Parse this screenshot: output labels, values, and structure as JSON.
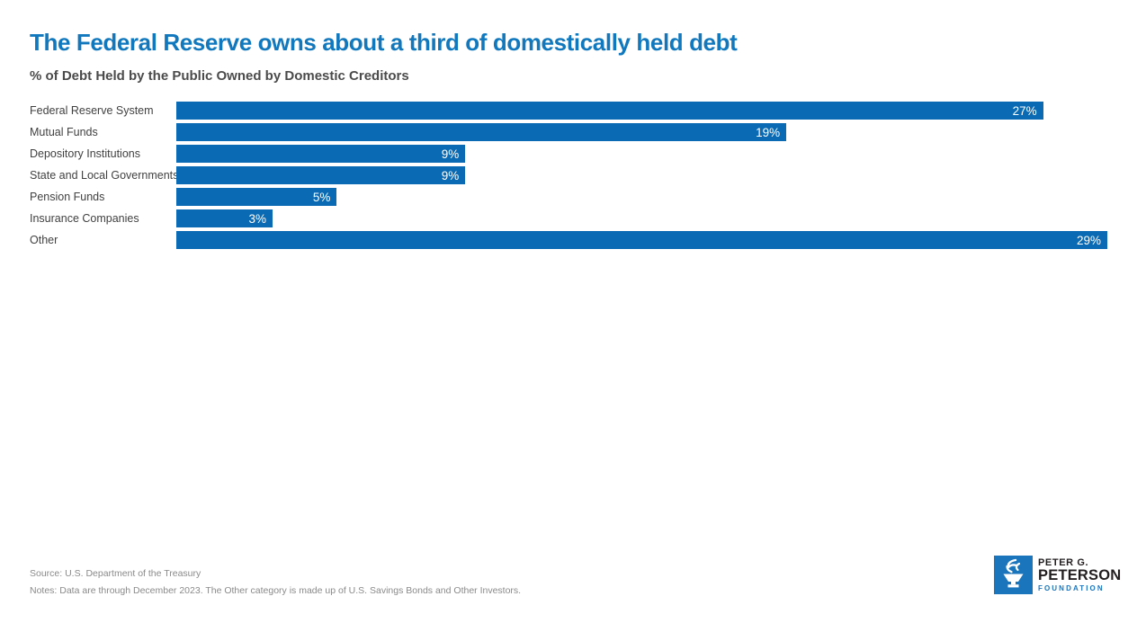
{
  "chart_data": {
    "type": "bar",
    "orientation": "horizontal",
    "title": "The Federal Reserve owns about a third of domestically held debt",
    "subtitle": "% of Debt Held by the Public Owned by Domestic Creditors",
    "categories": [
      "Federal Reserve System",
      "Mutual Funds",
      "Depository Institutions",
      "State and Local Governments",
      "Pension Funds",
      "Insurance Companies",
      "Other"
    ],
    "values": [
      27,
      19,
      9,
      9,
      5,
      3,
      29
    ],
    "value_labels": [
      "27%",
      "19%",
      "9%",
      "9%",
      "5%",
      "3%",
      "29%"
    ],
    "xlabel": "",
    "ylabel": "",
    "xlim": [
      0,
      29
    ],
    "grid": false,
    "legend": false,
    "bar_color": "#0a6ab3",
    "value_label_color": "#ffffff",
    "title_color": "#1178be",
    "subtitle_color": "#4b4b4b"
  },
  "footer": {
    "source": "Source: U.S. Department of the Treasury",
    "notes": "Notes: Data are through December 2023. The Other category is made up of U.S. Savings Bonds and Other Investors."
  },
  "logo": {
    "line1": "PETER G.",
    "line2": "PETERSON",
    "line3": "FOUNDATION",
    "icon": "torch-icon",
    "square_color": "#1b75bc",
    "name_color": "#231f20",
    "foundation_color": "#1b75bc"
  }
}
